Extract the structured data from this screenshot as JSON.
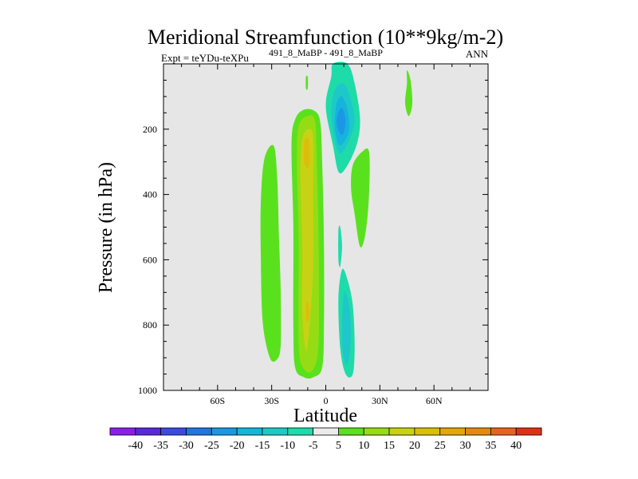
{
  "chart_data": {
    "type": "heatmap",
    "title": "Meridional Streamfunction (10**9kg/m-2)",
    "subtitle_left": "Expt = teYDu-teXPu",
    "subtitle_superscript": "491_8_MaBP - 491_8_MaBP",
    "subtitle_right": "ANN",
    "xlabel": "Latitude",
    "ylabel": "Pressure (in hPa)",
    "xlim": [
      -90,
      90
    ],
    "ylim": [
      1000,
      0
    ],
    "x_ticks": [
      {
        "value": -60,
        "label": "60S"
      },
      {
        "value": -30,
        "label": "30S"
      },
      {
        "value": 0,
        "label": "0"
      },
      {
        "value": 30,
        "label": "30N"
      },
      {
        "value": 60,
        "label": "60N"
      }
    ],
    "y_ticks": [
      {
        "value": 200,
        "label": "200"
      },
      {
        "value": 400,
        "label": "400"
      },
      {
        "value": 600,
        "label": "600"
      },
      {
        "value": 800,
        "label": "800"
      },
      {
        "value": 1000,
        "label": "1000"
      }
    ],
    "background_color": "#e6e6e6",
    "colorbar": {
      "levels": [
        "-40",
        "-35",
        "-30",
        "-25",
        "-20",
        "-15",
        "-10",
        "-5",
        "5",
        "10",
        "15",
        "20",
        "25",
        "30",
        "35",
        "40"
      ],
      "colors": [
        "#8c1ee6",
        "#5a28d7",
        "#3c4bdc",
        "#1e78dc",
        "#1e96e6",
        "#14b4dc",
        "#1ec8c8",
        "#1edcaa",
        "#ebebeb",
        "#5ae11e",
        "#96dc14",
        "#c8d214",
        "#dcbe0a",
        "#e6a50a",
        "#e68714",
        "#e6641e",
        "#dc3214"
      ]
    },
    "contour_regions": [
      {
        "name": "sh-midlat-positive",
        "level": 10,
        "color": "#5ae11e",
        "points": [
          [
            -34,
            290
          ],
          [
            -29,
            250
          ],
          [
            -27,
            340
          ],
          [
            -26,
            520
          ],
          [
            -25,
            700
          ],
          [
            -25,
            860
          ],
          [
            -27,
            905
          ],
          [
            -31,
            900
          ],
          [
            -35,
            790
          ],
          [
            -36,
            600
          ],
          [
            -36,
            420
          ]
        ]
      },
      {
        "name": "hadley-positive-outer",
        "level": 10,
        "color": "#5ae11e",
        "points": [
          [
            -17,
            170
          ],
          [
            -12,
            140
          ],
          [
            -6,
            145
          ],
          [
            -3,
            180
          ],
          [
            -2,
            300
          ],
          [
            -1,
            550
          ],
          [
            -1,
            800
          ],
          [
            -2,
            930
          ],
          [
            -7,
            960
          ],
          [
            -12,
            960
          ],
          [
            -17,
            930
          ],
          [
            -18,
            800
          ],
          [
            -18,
            500
          ],
          [
            -19,
            250
          ]
        ]
      },
      {
        "name": "hadley-positive-15",
        "level": 15,
        "color": "#96dc14",
        "points": [
          [
            -15,
            190
          ],
          [
            -10,
            160
          ],
          [
            -6,
            175
          ],
          [
            -5,
            300
          ],
          [
            -4,
            550
          ],
          [
            -4,
            850
          ],
          [
            -7,
            935
          ],
          [
            -12,
            935
          ],
          [
            -15,
            860
          ],
          [
            -15,
            550
          ],
          [
            -16,
            300
          ]
        ]
      },
      {
        "name": "hadley-positive-20",
        "level": 20,
        "color": "#c8d214",
        "points": [
          [
            -13,
            230
          ],
          [
            -9,
            200
          ],
          [
            -7,
            230
          ],
          [
            -7,
            400
          ],
          [
            -7,
            620
          ],
          [
            -9,
            800
          ],
          [
            -11,
            880
          ],
          [
            -13,
            760
          ],
          [
            -13,
            550
          ],
          [
            -14,
            350
          ]
        ]
      },
      {
        "name": "hadley-core-25",
        "level": 25,
        "color": "#dcbe0a",
        "points": [
          [
            -12,
            240
          ],
          [
            -10,
            225
          ],
          [
            -9,
            250
          ],
          [
            -9,
            300
          ],
          [
            -10,
            320
          ],
          [
            -12,
            300
          ]
        ]
      },
      {
        "name": "lower-core-25",
        "level": 25,
        "color": "#dcbe0a",
        "points": [
          [
            -11,
            735
          ],
          [
            -10,
            730
          ],
          [
            -9,
            765
          ],
          [
            -10,
            790
          ],
          [
            -11,
            775
          ]
        ]
      },
      {
        "name": "strat-positive-sliver",
        "level": 10,
        "color": "#5ae11e",
        "points": [
          [
            -11,
            40
          ],
          [
            -10,
            40
          ],
          [
            -10,
            75
          ],
          [
            -11,
            75
          ]
        ]
      },
      {
        "name": "nh-upper-negative-outer",
        "level": -5,
        "color": "#1edcaa",
        "points": [
          [
            4,
            0
          ],
          [
            12,
            0
          ],
          [
            16,
            60
          ],
          [
            19,
            170
          ],
          [
            17,
            250
          ],
          [
            11,
            320
          ],
          [
            7,
            330
          ],
          [
            4,
            250
          ],
          [
            0,
            130
          ],
          [
            3,
            40
          ]
        ]
      },
      {
        "name": "nh-upper-negative-10",
        "level": -10,
        "color": "#1ec8c8",
        "points": [
          [
            5,
            80
          ],
          [
            10,
            60
          ],
          [
            14,
            110
          ],
          [
            16,
            180
          ],
          [
            12,
            245
          ],
          [
            8,
            275
          ],
          [
            5,
            235
          ],
          [
            3,
            150
          ]
        ]
      },
      {
        "name": "nh-upper-negative-15",
        "level": -15,
        "color": "#14b4dc",
        "points": [
          [
            6,
            120
          ],
          [
            9,
            100
          ],
          [
            12,
            140
          ],
          [
            13,
            200
          ],
          [
            10,
            240
          ],
          [
            7,
            245
          ],
          [
            5,
            190
          ]
        ]
      },
      {
        "name": "nh-upper-negative-20",
        "level": -20,
        "color": "#1e96e6",
        "points": [
          [
            7,
            150
          ],
          [
            9,
            135
          ],
          [
            11,
            170
          ],
          [
            10,
            210
          ],
          [
            8,
            215
          ],
          [
            6,
            180
          ]
        ]
      },
      {
        "name": "nh-positive-mid",
        "level": 10,
        "color": "#5ae11e",
        "points": [
          [
            15,
            310
          ],
          [
            20,
            270
          ],
          [
            24,
            270
          ],
          [
            24,
            400
          ],
          [
            22,
            520
          ],
          [
            19,
            560
          ],
          [
            16,
            460
          ],
          [
            14,
            380
          ]
        ]
      },
      {
        "name": "nh-thin-negative",
        "level": -5,
        "color": "#1edcaa",
        "points": [
          [
            7,
            510
          ],
          [
            8,
            500
          ],
          [
            9,
            560
          ],
          [
            8,
            620
          ],
          [
            7,
            600
          ]
        ]
      },
      {
        "name": "nh-lower-negative-outer",
        "level": -5,
        "color": "#1edcaa",
        "points": [
          [
            9,
            630
          ],
          [
            12,
            660
          ],
          [
            15,
            740
          ],
          [
            16,
            860
          ],
          [
            15,
            950
          ],
          [
            11,
            950
          ],
          [
            8,
            870
          ],
          [
            7,
            720
          ]
        ]
      },
      {
        "name": "nh-lower-negative-10",
        "level": -10,
        "color": "#1ec8c8",
        "points": [
          [
            10,
            700
          ],
          [
            13,
            740
          ],
          [
            14,
            820
          ],
          [
            13,
            900
          ],
          [
            11,
            920
          ],
          [
            9,
            850
          ]
        ]
      },
      {
        "name": "nh-strat-positive",
        "level": 10,
        "color": "#5ae11e",
        "points": [
          [
            45,
            20
          ],
          [
            47,
            50
          ],
          [
            48,
            120
          ],
          [
            46,
            160
          ],
          [
            44,
            120
          ],
          [
            45,
            60
          ]
        ]
      }
    ]
  }
}
